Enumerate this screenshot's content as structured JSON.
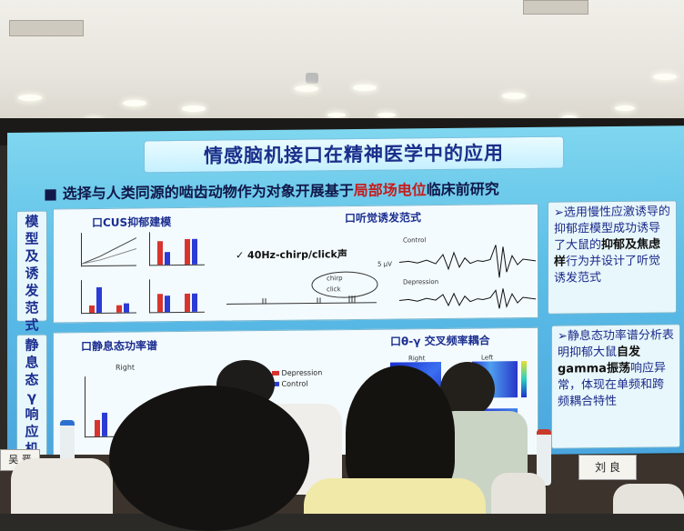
{
  "slide": {
    "title": "情感脑机接口在精神医学中的应用",
    "subtitle_prefix": "■ 选择与人类同源的啮齿动物作为对象开展基于",
    "subtitle_highlight": "局部场电位",
    "subtitle_suffix": "临床前研究",
    "section1_label": "模型及诱发范式",
    "section2_label": "静息态γ响应机制",
    "panel1": {
      "title_left": "口CUS抑郁建模",
      "title_right": "口听觉诱发范式",
      "stimulus": "✓ 40Hz-chirp/click声",
      "wave_top": "Control",
      "wave_bottom": "Depression",
      "scale": "5 μV",
      "click": "click",
      "chirp": "chirp"
    },
    "panel1_note_a": "➢选用慢性应激诱导的抑郁症模型成功诱导了大鼠的",
    "panel1_note_bold": "抑郁及焦虑样",
    "panel1_note_b": "行为并设计了听觉诱发范式",
    "panel2": {
      "title_left": "口静息态功率谱",
      "title_right": "口θ-γ 交叉频率耦合",
      "legend_depression": "Depression",
      "legend_control": "Control",
      "chart_right": "Right",
      "hm_right": "Right",
      "hm_left": "Left"
    },
    "panel2_note_a": "➢静息态功率谱分析表明抑郁大鼠",
    "panel2_note_bold": "自发gamma振荡",
    "panel2_note_b": "响应异常，体现在单频和跨频耦合特性"
  },
  "name_cards": {
    "left": "吴 晋",
    "right": "刘 良"
  },
  "colors": {
    "depression": "#d8342f",
    "control": "#2b3bd6",
    "accent": "#1c2f90"
  }
}
